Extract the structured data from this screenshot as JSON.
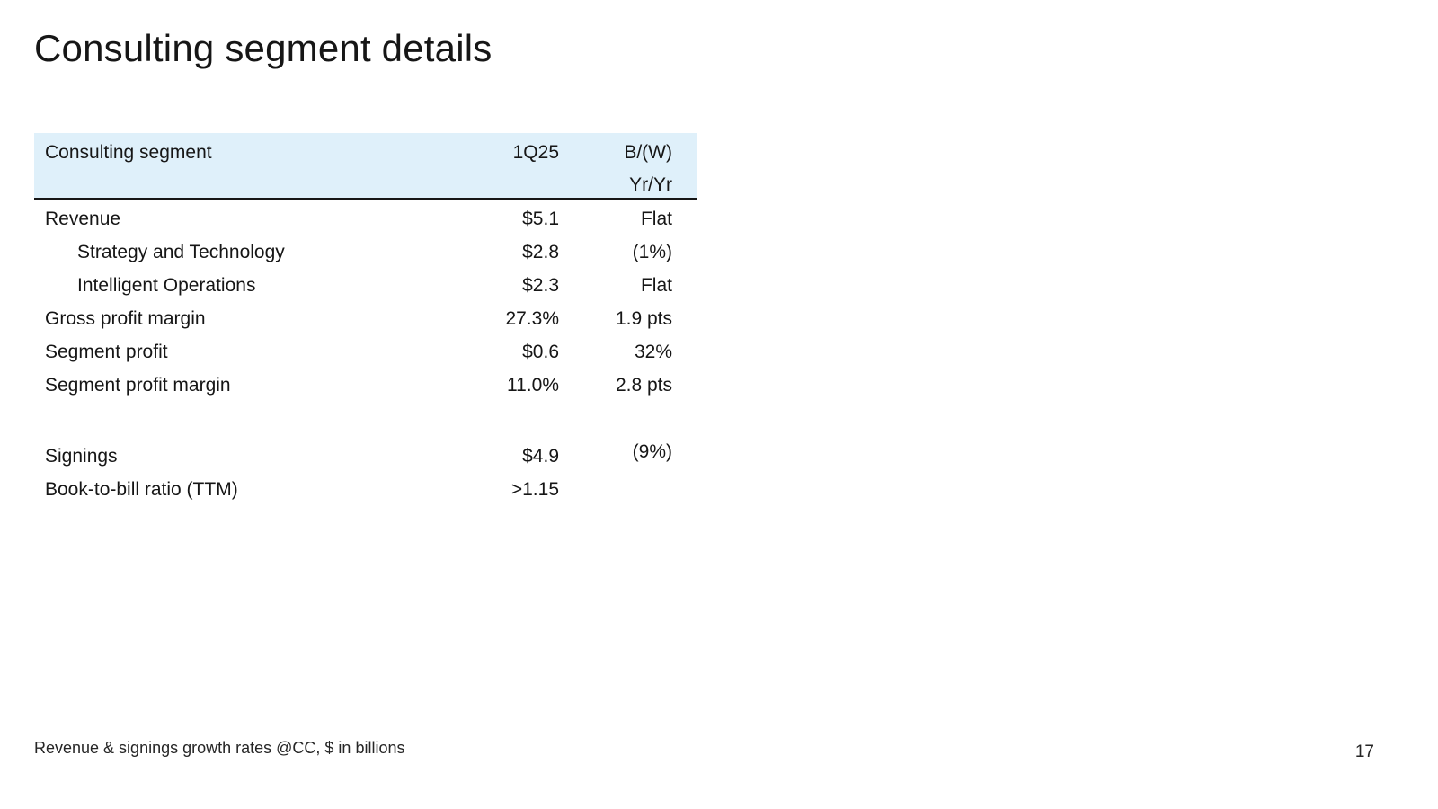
{
  "slide": {
    "title": "Consulting segment details",
    "footnote": "Revenue & signings growth rates @CC, $ in billions",
    "page_number": "17"
  },
  "table": {
    "header": {
      "label": "Consulting segment",
      "quarter": "1Q25",
      "bw": "B/(W)",
      "yryr": "Yr/Yr"
    },
    "rows": [
      {
        "label": "Revenue",
        "value": "$5.1",
        "yoy": "Flat",
        "indent": false
      },
      {
        "label": "Strategy and Technology",
        "value": "$2.8",
        "yoy": "(1%)",
        "indent": true
      },
      {
        "label": "Intelligent Operations",
        "value": "$2.3",
        "yoy": "Flat",
        "indent": true
      },
      {
        "label": "Gross profit margin",
        "value": "27.3%",
        "yoy": "1.9 pts",
        "indent": false
      },
      {
        "label": "Segment profit",
        "value": "$0.6",
        "yoy": "32%",
        "indent": false
      },
      {
        "label": "Segment profit margin",
        "value": "11.0%",
        "yoy": "2.8 pts",
        "indent": false
      },
      {
        "spacer": true
      },
      {
        "label": "Signings",
        "value": "$4.9",
        "yoy": "(9%)",
        "indent": false,
        "yoy_raised": true
      },
      {
        "label": "Book-to-bill ratio (TTM)",
        "value": ">1.15",
        "yoy": "",
        "indent": false
      }
    ],
    "colors": {
      "header_bg": "#dff0fa",
      "rule": "#161616",
      "text": "#161616"
    }
  }
}
